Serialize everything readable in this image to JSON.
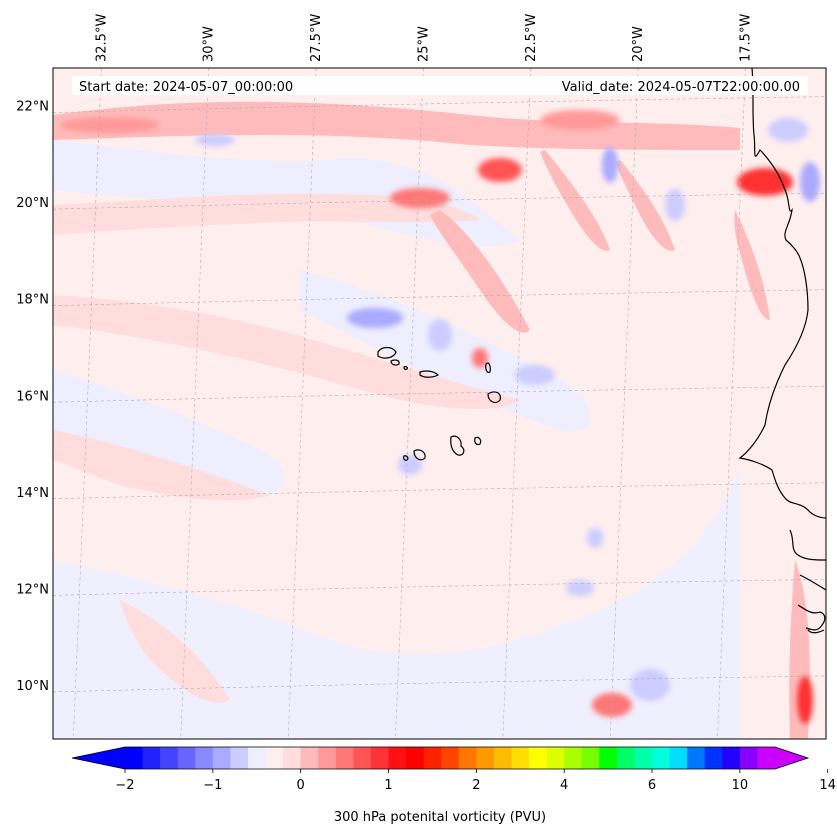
{
  "chart_data": {
    "type": "heatmap",
    "title": "",
    "annotations": {
      "start_date": "Start date: 2024-05-07_00:00:00",
      "valid_date": "Valid_date: 2024-05-07T22:00:00.00"
    },
    "longitude_ticks": [
      "32.5°W",
      "30°W",
      "27.5°W",
      "25°W",
      "22.5°W",
      "20°W",
      "17.5°W"
    ],
    "longitude_values": [
      -32.5,
      -30,
      -27.5,
      -25,
      -22.5,
      -20,
      -17.5
    ],
    "latitude_ticks": [
      "22°N",
      "20°N",
      "18°N",
      "16°N",
      "14°N",
      "12°N",
      "10°N"
    ],
    "latitude_values": [
      22,
      20,
      18,
      16,
      14,
      12,
      10
    ],
    "lon_range": [
      -33.3,
      -15.3
    ],
    "lat_range": [
      8.9,
      22.8
    ],
    "grid": true,
    "colorbar": {
      "label": "300 hPa potenital vorticity (PVU)",
      "tick_labels": [
        "−2",
        "−1",
        "0",
        "1",
        "2",
        "4",
        "6",
        "10",
        "14"
      ],
      "levels": [
        -2,
        -1.8,
        -1.6,
        -1.4,
        -1.2,
        -1,
        -0.8,
        -0.6,
        -0.4,
        -0.2,
        0,
        0.2,
        0.4,
        0.6,
        0.8,
        1,
        1.2,
        1.4,
        1.6,
        1.8,
        2,
        2.4,
        2.8,
        3.2,
        3.6,
        4,
        4.4,
        4.8,
        5.2,
        5.6,
        6,
        6.8,
        7.6,
        8.4,
        9.2,
        10,
        10.8,
        11.6,
        12.4,
        13.2,
        14
      ],
      "colors": [
        "#0000ff",
        "#2222ff",
        "#4444ff",
        "#6666ff",
        "#8888ff",
        "#aaaaff",
        "#ccccff",
        "#eeeeff",
        "#ffeeee",
        "#ffdddd",
        "#ffbbbb",
        "#ff9999",
        "#ff7777",
        "#ff5555",
        "#ff3333",
        "#ff1111",
        "#ff0000",
        "#ff2200",
        "#ff4400",
        "#ff7700",
        "#ff9900",
        "#ffbb00",
        "#ffdd00",
        "#ffff00",
        "#ddff00",
        "#aaff00",
        "#77ff00",
        "#00ff00",
        "#00ff66",
        "#00ffaa",
        "#00ffdd",
        "#00ddff",
        "#0077ff",
        "#0033ff",
        "#2200ff",
        "#8800ff",
        "#cc00ff"
      ],
      "extend": "both",
      "placement": "bottom"
    },
    "field_features": [
      {
        "type": "positive",
        "lon": -30.0,
        "lat": 21.5,
        "value": 0.8
      },
      {
        "type": "positive",
        "lon": -25.2,
        "lat": 20.1,
        "value": 1.3
      },
      {
        "type": "positive",
        "lon": -22.5,
        "lat": 20.7,
        "value": 1.2
      },
      {
        "type": "positive",
        "lon": -20.8,
        "lat": 20.3,
        "value": 0.9
      },
      {
        "type": "positive",
        "lon": -19.6,
        "lat": 20.2,
        "value": 1.0
      },
      {
        "type": "positive",
        "lon": -17.8,
        "lat": 19.2,
        "value": 0.9
      },
      {
        "type": "positive",
        "lon": -16.4,
        "lat": 20.5,
        "value": 1.6
      },
      {
        "type": "positive",
        "lon": -15.7,
        "lat": 9.9,
        "value": 1.5
      },
      {
        "type": "positive",
        "lon": -19.8,
        "lat": 9.6,
        "value": 1.1
      },
      {
        "type": "positive",
        "lon": -27.5,
        "lat": 17.0,
        "value": 0.5
      },
      {
        "type": "negative",
        "lon": -25.6,
        "lat": 17.2,
        "value": -0.8
      },
      {
        "type": "negative",
        "lon": -23.2,
        "lat": 17.1,
        "value": -0.4
      },
      {
        "type": "negative",
        "lon": -20.0,
        "lat": 20.7,
        "value": -0.5
      },
      {
        "type": "negative",
        "lon": -15.5,
        "lat": 20.5,
        "value": -0.7
      },
      {
        "type": "negative",
        "lon": -19.3,
        "lat": 10.0,
        "value": -0.5
      },
      {
        "type": "negative",
        "lon": -20.5,
        "lat": 13.0,
        "value": -0.3
      }
    ]
  }
}
